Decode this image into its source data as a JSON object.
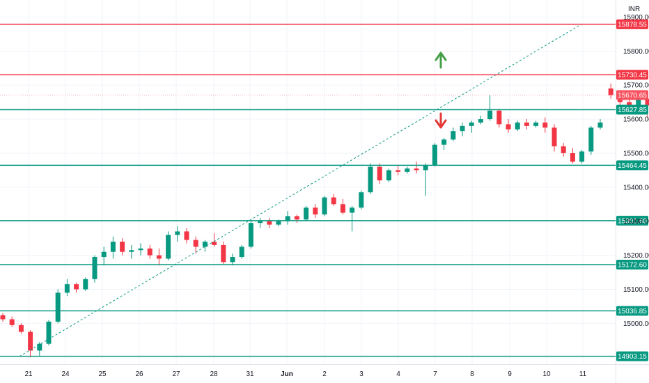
{
  "chart_data": {
    "type": "candlestick",
    "currency": "INR",
    "y_range": [
      14880,
      15950
    ],
    "y_ticks": [
      "15900.00",
      "15800.00",
      "15700.00",
      "15600.00",
      "15500.00",
      "15400.00",
      "15300.00",
      "15200.00",
      "15100.00",
      "15000.00"
    ],
    "x_ticks": [
      "21",
      "24",
      "25",
      "26",
      "27",
      "28",
      "31",
      "Jun",
      "2",
      "3",
      "4",
      "7",
      "8",
      "9",
      "10",
      "11"
    ],
    "levels": [
      {
        "label": "15878.55",
        "value": 15878.55,
        "color": "#f23645"
      },
      {
        "label": "15730.45",
        "value": 15730.45,
        "color": "#f23645"
      },
      {
        "label": "15670.65",
        "value": 15670.65,
        "color": "#f7525f"
      },
      {
        "label": "15627.85",
        "value": 15627.85,
        "color": "#089981"
      },
      {
        "label": "15464.45",
        "value": 15464.45,
        "color": "#089981"
      },
      {
        "label": "15301.60",
        "value": 15301.6,
        "color": "#089981"
      },
      {
        "label": "15172.60",
        "value": 15172.6,
        "color": "#089981"
      },
      {
        "label": "15036.85",
        "value": 15036.85,
        "color": "#089981"
      },
      {
        "label": "14903.15",
        "value": 14903.15,
        "color": "#089981"
      }
    ],
    "trendline": {
      "from": {
        "x": "21",
        "y": 14903
      },
      "to": {
        "x": "11",
        "y": 15880
      }
    },
    "series": [
      {
        "values": [
          [
            15024,
            15030,
            15005,
            15012
          ],
          [
            15012,
            15020,
            14990,
            14995
          ],
          [
            14995,
            15000,
            14970,
            14975
          ],
          [
            14975,
            14980,
            14900,
            14920
          ],
          [
            14920,
            14945,
            14905,
            14940
          ],
          [
            14940,
            15010,
            14935,
            15005
          ],
          [
            15005,
            15100,
            15000,
            15090
          ],
          [
            15090,
            15130,
            15080,
            15115
          ],
          [
            15115,
            15120,
            15090,
            15100
          ],
          [
            15100,
            15135,
            15095,
            15130
          ],
          [
            15130,
            15200,
            15120,
            15195
          ],
          [
            15195,
            15225,
            15170,
            15210
          ],
          [
            15210,
            15255,
            15190,
            15240
          ],
          [
            15240,
            15250,
            15200,
            15210
          ],
          [
            15210,
            15230,
            15190,
            15215
          ],
          [
            15215,
            15235,
            15200,
            15220
          ],
          [
            15220,
            15230,
            15190,
            15200
          ],
          [
            15200,
            15220,
            15170,
            15190
          ],
          [
            15190,
            15270,
            15185,
            15260
          ],
          [
            15260,
            15285,
            15240,
            15270
          ],
          [
            15270,
            15280,
            15235,
            15245
          ],
          [
            15245,
            15255,
            15205,
            15225
          ],
          [
            15225,
            15245,
            15210,
            15240
          ],
          [
            15240,
            15265,
            15225,
            15230
          ],
          [
            15230,
            15240,
            15175,
            15180
          ],
          [
            15180,
            15205,
            15170,
            15195
          ],
          [
            15195,
            15230,
            15190,
            15225
          ],
          [
            15225,
            15300,
            15220,
            15295
          ],
          [
            15295,
            15310,
            15280,
            15300
          ],
          [
            15300,
            15310,
            15280,
            15290
          ],
          [
            15290,
            15305,
            15285,
            15300
          ],
          [
            15300,
            15330,
            15290,
            15315
          ],
          [
            15315,
            15320,
            15295,
            15305
          ],
          [
            15305,
            15345,
            15300,
            15340
          ],
          [
            15340,
            15350,
            15310,
            15320
          ],
          [
            15320,
            15375,
            15315,
            15370
          ],
          [
            15370,
            15380,
            15345,
            15350
          ],
          [
            15350,
            15365,
            15320,
            15325
          ],
          [
            15325,
            15345,
            15270,
            15340
          ],
          [
            15340,
            15390,
            15335,
            15385
          ],
          [
            15385,
            15470,
            15380,
            15460
          ],
          [
            15460,
            15470,
            15410,
            15420
          ],
          [
            15420,
            15455,
            15415,
            15450
          ],
          [
            15450,
            15465,
            15435,
            15445
          ],
          [
            15445,
            15460,
            15440,
            15455
          ],
          [
            15455,
            15475,
            15440,
            15450
          ],
          [
            15450,
            15470,
            15375,
            15465
          ],
          [
            15465,
            15530,
            15460,
            15525
          ],
          [
            15525,
            15545,
            15510,
            15540
          ],
          [
            15540,
            15575,
            15535,
            15565
          ],
          [
            15565,
            15590,
            15550,
            15580
          ],
          [
            15580,
            15595,
            15560,
            15590
          ],
          [
            15590,
            15610,
            15585,
            15600
          ],
          [
            15600,
            15670,
            15595,
            15625
          ],
          [
            15625,
            15630,
            15575,
            15585
          ],
          [
            15585,
            15600,
            15560,
            15570
          ],
          [
            15570,
            15595,
            15565,
            15590
          ],
          [
            15590,
            15600,
            15570,
            15580
          ],
          [
            15580,
            15595,
            15575,
            15590
          ],
          [
            15590,
            15605,
            15560,
            15575
          ],
          [
            15575,
            15585,
            15505,
            15520
          ],
          [
            15520,
            15530,
            15490,
            15500
          ],
          [
            15500,
            15515,
            15470,
            15475
          ],
          [
            15475,
            15510,
            15470,
            15505
          ],
          [
            15505,
            15580,
            15495,
            15575
          ],
          [
            15575,
            15600,
            15570,
            15590
          ],
          [
            15690,
            15705,
            15660,
            15670
          ],
          [
            15670,
            15680,
            15625,
            15650
          ],
          [
            15650,
            15660,
            15625,
            15630
          ],
          [
            15630,
            15665,
            15625,
            15660
          ],
          [
            15660,
            15680,
            15605,
            15640
          ],
          [
            15640,
            15700,
            15635,
            15690
          ],
          [
            15690,
            15725,
            15680,
            15715
          ],
          [
            15715,
            15735,
            15700,
            15730
          ],
          [
            15730,
            15735,
            15665,
            15670
          ],
          [
            15670,
            15685,
            15655,
            15660
          ],
          [
            15660,
            15705,
            15610,
            15665
          ],
          [
            15665,
            15670,
            15660,
            15663
          ],
          [
            15663,
            15670,
            15630,
            15665
          ],
          [
            15665,
            15675,
            15660,
            15670
          ],
          [
            15670,
            15680,
            15660,
            15668
          ]
        ]
      }
    ]
  }
}
